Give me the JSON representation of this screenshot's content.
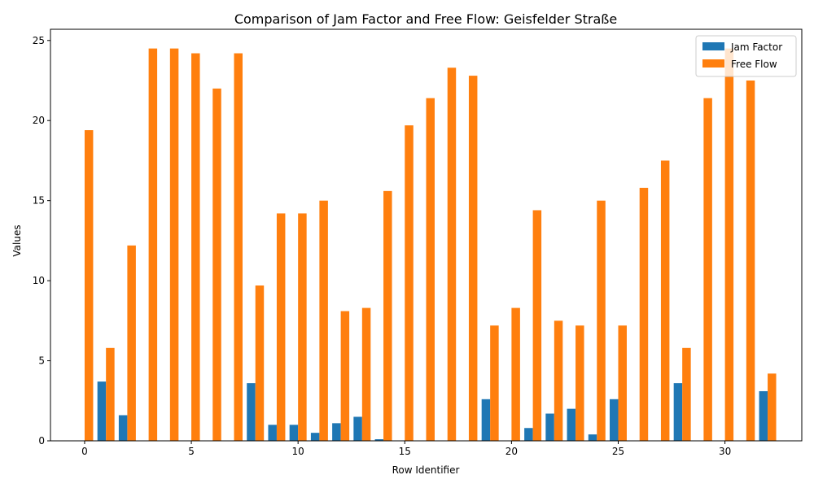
{
  "chart_data": {
    "type": "bar",
    "title": "Comparison of Jam Factor and Free Flow: Geisfelder Straße",
    "xlabel": "Row Identifier",
    "ylabel": "Values",
    "xlim": [
      -1.6,
      33.6
    ],
    "ylim": [
      0,
      25.7
    ],
    "xticks": [
      0,
      5,
      10,
      15,
      20,
      25,
      30
    ],
    "yticks": [
      0,
      5,
      10,
      15,
      20,
      25
    ],
    "legend_position": "top-right",
    "grid": false,
    "x": [
      0,
      1,
      2,
      3,
      4,
      5,
      6,
      7,
      8,
      9,
      10,
      11,
      12,
      13,
      14,
      15,
      16,
      17,
      18,
      19,
      20,
      21,
      22,
      23,
      24,
      25,
      26,
      27,
      28,
      29,
      30,
      31,
      32
    ],
    "series": [
      {
        "name": "Jam Factor",
        "color": "#1f77b4",
        "values": [
          0,
          3.7,
          1.6,
          0,
          0,
          0,
          0,
          0,
          3.6,
          1.0,
          1.0,
          0.5,
          1.1,
          1.5,
          0.1,
          0,
          0,
          0,
          0,
          2.6,
          0,
          0.8,
          1.7,
          2.0,
          0.4,
          2.6,
          0,
          0,
          3.6,
          0,
          0,
          0,
          3.1
        ]
      },
      {
        "name": "Free Flow",
        "color": "#ff7f0e",
        "values": [
          19.4,
          5.8,
          12.2,
          24.5,
          24.5,
          24.2,
          22.0,
          24.2,
          9.7,
          14.2,
          14.2,
          15.0,
          8.1,
          8.3,
          15.6,
          19.7,
          21.4,
          23.3,
          22.8,
          7.2,
          8.3,
          14.4,
          7.5,
          7.2,
          15.0,
          7.2,
          15.8,
          17.5,
          5.8,
          21.4,
          24.5,
          22.5,
          4.2
        ]
      }
    ]
  }
}
